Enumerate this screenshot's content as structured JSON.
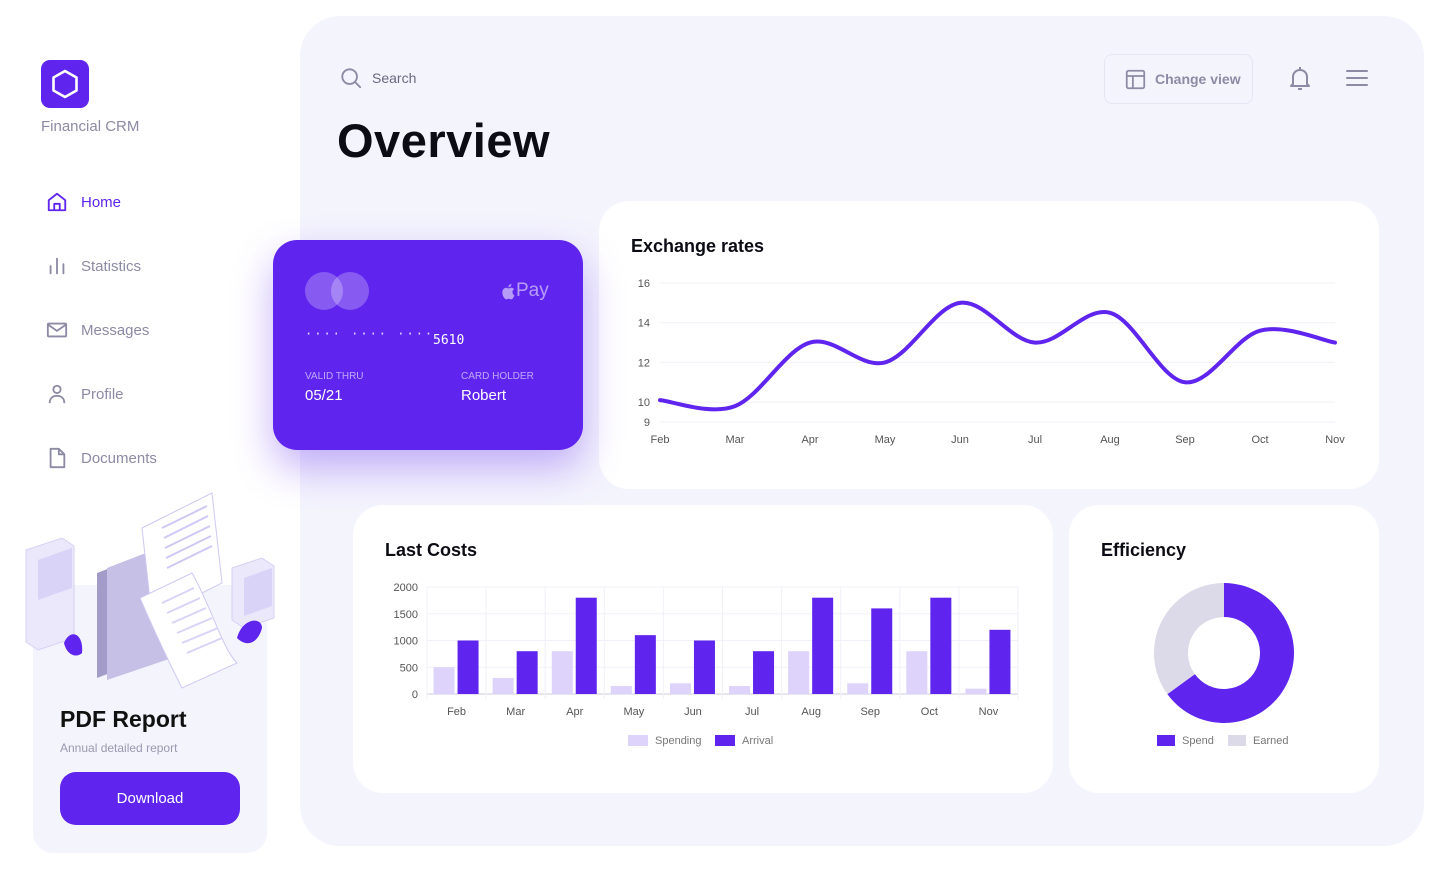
{
  "brand": {
    "name": "Financial CRM",
    "accent": "#5f24ee"
  },
  "sidebar": {
    "items": [
      {
        "label": "Home",
        "icon": "home-icon",
        "active": true
      },
      {
        "label": "Statistics",
        "icon": "bar-chart-icon",
        "active": false
      },
      {
        "label": "Messages",
        "icon": "mail-icon",
        "active": false
      },
      {
        "label": "Profile",
        "icon": "user-icon",
        "active": false
      },
      {
        "label": "Documents",
        "icon": "document-icon",
        "active": false
      }
    ],
    "pdf": {
      "title": "PDF Report",
      "subtitle": "Annual detailed report",
      "button": "Download"
    }
  },
  "header": {
    "search_placeholder": "Search",
    "change_view": "Change view",
    "title": "Overview"
  },
  "card": {
    "dots": "···· ···· ····",
    "last4": "5610",
    "valid_label": "VALID THRU",
    "valid": "05/21",
    "holder_label": "CARD HOLDER",
    "holder": "Robert",
    "pay": "Pay"
  },
  "exchange": {
    "title": "Exchange rates",
    "chart_data": {
      "type": "line",
      "x": [
        "Feb",
        "Mar",
        "Apr",
        "May",
        "Jun",
        "Jul",
        "Aug",
        "Sep",
        "Oct",
        "Nov"
      ],
      "y": [
        10.1,
        9.8,
        13.0,
        12.0,
        15.0,
        13.0,
        14.5,
        11.0,
        13.6,
        13.0
      ],
      "yticks": [
        9,
        10,
        12,
        14,
        16
      ],
      "ylim": [
        9,
        16
      ],
      "color": "#5f24ee"
    }
  },
  "costs": {
    "title": "Last Costs",
    "chart_data": {
      "type": "bar",
      "categories": [
        "Feb",
        "Mar",
        "Apr",
        "May",
        "Jun",
        "Jul",
        "Aug",
        "Sep",
        "Oct",
        "Nov"
      ],
      "series": [
        {
          "name": "Spending",
          "values": [
            500,
            300,
            800,
            150,
            200,
            150,
            800,
            200,
            800,
            100
          ],
          "color": "#ddd3fb"
        },
        {
          "name": "Arrival",
          "values": [
            1000,
            800,
            1800,
            1100,
            1000,
            800,
            1800,
            1600,
            1800,
            1200
          ],
          "color": "#5f24ee"
        }
      ],
      "yticks": [
        0,
        500,
        1000,
        1500,
        2000
      ],
      "ylim": [
        0,
        2000
      ]
    }
  },
  "efficiency": {
    "title": "Efficiency",
    "chart_data": {
      "type": "pie",
      "labels": [
        "Spend",
        "Earned"
      ],
      "values": [
        65,
        35
      ],
      "colors": [
        "#5f24ee",
        "#dcdae8"
      ]
    }
  }
}
